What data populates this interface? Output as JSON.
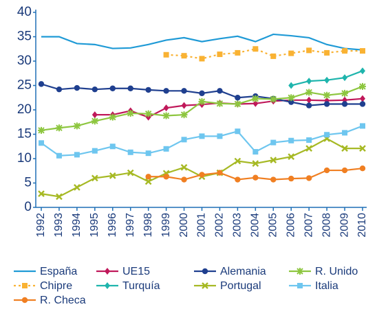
{
  "chart_data": {
    "type": "line",
    "x": [
      1992,
      1993,
      1994,
      1995,
      1996,
      1997,
      1998,
      1999,
      2000,
      2001,
      2002,
      2003,
      2004,
      2005,
      2006,
      2007,
      2008,
      2009,
      2010
    ],
    "ylim": [
      0,
      40
    ],
    "yticks": [
      0,
      5,
      10,
      15,
      20,
      25,
      30,
      35,
      40
    ],
    "xlim": [
      1992,
      2010
    ],
    "xticks": [
      1992,
      1993,
      1994,
      1995,
      1996,
      1997,
      1998,
      1999,
      2000,
      2001,
      2002,
      2003,
      2004,
      2005,
      2006,
      2007,
      2008,
      2009,
      2010
    ],
    "grid": false,
    "legend": "bottom",
    "series": [
      {
        "name": "España",
        "color": "#1f9ad6",
        "marker": "none",
        "dash": false,
        "values": [
          35,
          35,
          33.6,
          33.4,
          32.6,
          32.7,
          33.4,
          34.3,
          34.8,
          34,
          34.6,
          35.1,
          34,
          35.5,
          35.2,
          34.8,
          33.4,
          32.6,
          32.3
        ]
      },
      {
        "name": "UE15",
        "color": "#c0185a",
        "marker": "diamond",
        "dash": false,
        "values": [
          null,
          null,
          null,
          19,
          19,
          19.8,
          18.5,
          20.4,
          20.9,
          21.1,
          21.4,
          21.2,
          21.3,
          21.8,
          22,
          22,
          21.9,
          22,
          22.3
        ]
      },
      {
        "name": "Alemania",
        "color": "#1f3f8f",
        "marker": "circle",
        "dash": false,
        "values": [
          25.3,
          24.2,
          24.5,
          24.2,
          24.4,
          24.4,
          24.1,
          23.9,
          23.9,
          23.4,
          23.9,
          22.5,
          22.8,
          22.3,
          21.6,
          20.9,
          21.2,
          21.2,
          21.2
        ]
      },
      {
        "name": "R. Unido",
        "color": "#8dc63f",
        "marker": "star",
        "dash": false,
        "values": [
          15.8,
          16.3,
          16.7,
          17.7,
          18.5,
          19.3,
          19.2,
          18.8,
          19,
          21.7,
          21.3,
          21.2,
          22.3,
          22.2,
          22.5,
          23.6,
          23,
          23.4,
          24.8
        ]
      },
      {
        "name": "Chipre",
        "color": "#f9b233",
        "marker": "square",
        "dash": true,
        "values": [
          null,
          null,
          null,
          null,
          null,
          null,
          null,
          31.3,
          31.1,
          30.5,
          31.4,
          31.7,
          32.5,
          31,
          31.6,
          32.2,
          31.7,
          32.1,
          32.1
        ]
      },
      {
        "name": "Turquía",
        "color": "#1fb5ad",
        "marker": "diamond",
        "dash": false,
        "values": [
          null,
          null,
          null,
          null,
          null,
          null,
          null,
          null,
          null,
          null,
          null,
          null,
          null,
          null,
          25,
          25.9,
          26.1,
          26.6,
          28
        ]
      },
      {
        "name": "Portugal",
        "color": "#a6b924",
        "marker": "x",
        "dash": false,
        "values": [
          2.8,
          2.2,
          4.1,
          6,
          6.5,
          7.1,
          5.3,
          7,
          8.2,
          6.3,
          7.1,
          9.5,
          9,
          9.7,
          10.4,
          12.1,
          14.1,
          12.1,
          12.1
        ]
      },
      {
        "name": "Italia",
        "color": "#6ec6ef",
        "marker": "square",
        "dash": false,
        "values": [
          13.2,
          10.6,
          10.8,
          11.6,
          12.5,
          11.3,
          11.1,
          12,
          13.9,
          14.6,
          14.6,
          15.6,
          11.4,
          13.3,
          13.7,
          13.8,
          14.9,
          15.3,
          16.7
        ]
      },
      {
        "name": "R. Checa",
        "color": "#f07f22",
        "marker": "circle",
        "dash": false,
        "values": [
          null,
          null,
          null,
          null,
          null,
          null,
          6.3,
          6.3,
          5.7,
          6.7,
          7.1,
          5.7,
          6.1,
          5.7,
          5.9,
          6,
          7.6,
          7.6,
          8
        ]
      }
    ]
  }
}
